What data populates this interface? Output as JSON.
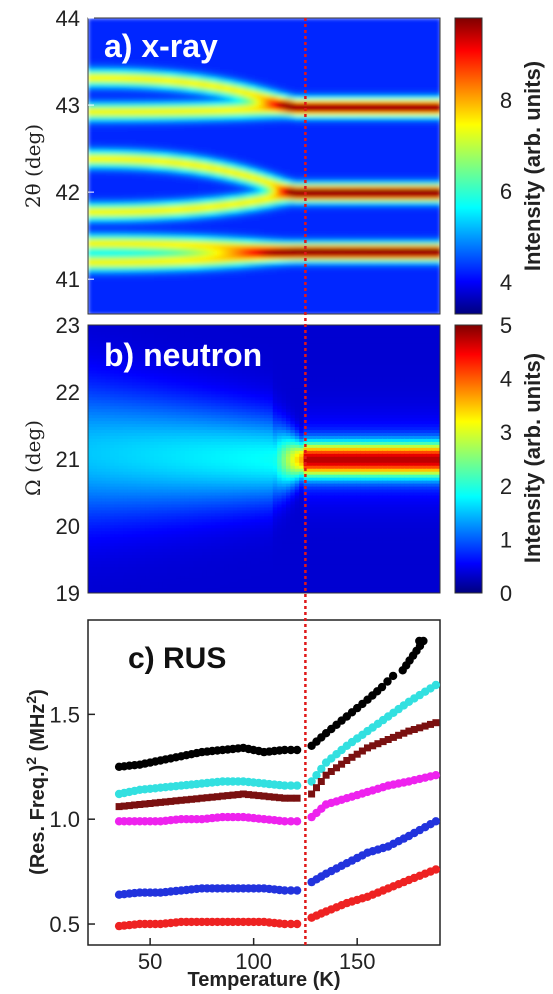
{
  "chart_data": [
    {
      "type": "heatmap",
      "panel_label": "a) x-ray",
      "ylabel": "2θ (deg)",
      "ylim": [
        40.6,
        44
      ],
      "yticks": [
        "41",
        "42",
        "43",
        "44"
      ],
      "colorbar_label": "Intensity (arb. units)",
      "colorbar_ticks": [
        "4",
        "6",
        "8"
      ],
      "colorbar_range": [
        3.3,
        9.8
      ],
      "colormap": "jet",
      "x_range": [
        30,
        190
      ],
      "peaks": [
        {
          "center_low_T": 43.32,
          "center_high_T": 42.98,
          "merge_T": 125
        },
        {
          "center_low_T": 42.93,
          "center_high_T": 42.98,
          "merge_T": 125
        },
        {
          "center_low_T": 42.39,
          "center_high_T": 42.0,
          "merge_T": 125
        },
        {
          "center_low_T": 41.78,
          "center_high_T": 42.0,
          "merge_T": 125
        },
        {
          "center_low_T": 41.42,
          "center_high_T": 41.32,
          "merge_T": 125
        },
        {
          "center_low_T": 41.2,
          "center_high_T": 41.32,
          "merge_T": 125
        }
      ]
    },
    {
      "type": "heatmap",
      "panel_label": "b) neutron",
      "ylabel": "Ω (deg)",
      "ylim": [
        19,
        23
      ],
      "yticks": [
        "19",
        "20",
        "21",
        "22",
        "23"
      ],
      "colorbar_label": "Intensity (arb. units)",
      "colorbar_ticks": [
        "0",
        "1",
        "2",
        "3",
        "4",
        "5"
      ],
      "colorbar_range": [
        0,
        5
      ],
      "colormap": "jet",
      "x_range": [
        30,
        190
      ],
      "peak_center": 21.0,
      "transition_T": 125
    },
    {
      "type": "scatter",
      "panel_label": "c) RUS",
      "xlabel": "Temperature (K)",
      "ylabel": "(Res. Freq.)² (MHz²)",
      "xlim": [
        20,
        190
      ],
      "ylim": [
        0.4,
        1.95
      ],
      "xticks": [
        "50",
        "100",
        "150"
      ],
      "yticks": [
        "0.5",
        "1.0",
        "1.5"
      ],
      "transition_T": 125,
      "series": [
        {
          "color": "#000000",
          "marker": "circle",
          "points": [
            [
              35,
              1.25
            ],
            [
              45,
              1.26
            ],
            [
              55,
              1.28
            ],
            [
              65,
              1.3
            ],
            [
              75,
              1.32
            ],
            [
              85,
              1.33
            ],
            [
              95,
              1.34
            ],
            [
              105,
              1.32
            ],
            [
              115,
              1.33
            ],
            [
              124,
              1.33
            ],
            [
              128,
              1.35
            ],
            [
              135,
              1.41
            ],
            [
              145,
              1.49
            ],
            [
              155,
              1.57
            ],
            [
              162,
              1.63
            ],
            [
              170,
              1.71
            ],
            [
              180,
              1.85
            ]
          ]
        },
        {
          "color": "#33e0e0",
          "marker": "circle",
          "points": [
            [
              35,
              1.12
            ],
            [
              45,
              1.14
            ],
            [
              55,
              1.15
            ],
            [
              65,
              1.16
            ],
            [
              75,
              1.17
            ],
            [
              85,
              1.18
            ],
            [
              95,
              1.18
            ],
            [
              105,
              1.17
            ],
            [
              115,
              1.16
            ],
            [
              124,
              1.16
            ],
            [
              128,
              1.18
            ],
            [
              135,
              1.27
            ],
            [
              145,
              1.35
            ],
            [
              155,
              1.42
            ],
            [
              165,
              1.49
            ],
            [
              175,
              1.56
            ],
            [
              188,
              1.64
            ]
          ]
        },
        {
          "color": "#7a1010",
          "marker": "square",
          "points": [
            [
              35,
              1.06
            ],
            [
              45,
              1.07
            ],
            [
              55,
              1.08
            ],
            [
              65,
              1.09
            ],
            [
              75,
              1.1
            ],
            [
              85,
              1.11
            ],
            [
              95,
              1.12
            ],
            [
              105,
              1.11
            ],
            [
              115,
              1.1
            ],
            [
              124,
              1.1
            ],
            [
              128,
              1.12
            ],
            [
              135,
              1.21
            ],
            [
              145,
              1.28
            ],
            [
              155,
              1.34
            ],
            [
              165,
              1.38
            ],
            [
              175,
              1.42
            ],
            [
              188,
              1.46
            ]
          ]
        },
        {
          "color": "#ee22ee",
          "marker": "circle",
          "points": [
            [
              35,
              0.99
            ],
            [
              45,
              0.99
            ],
            [
              55,
              0.99
            ],
            [
              65,
              1.0
            ],
            [
              75,
              1.0
            ],
            [
              85,
              1.01
            ],
            [
              95,
              1.01
            ],
            [
              105,
              1.0
            ],
            [
              115,
              0.99
            ],
            [
              124,
              0.99
            ],
            [
              128,
              1.01
            ],
            [
              135,
              1.07
            ],
            [
              145,
              1.1
            ],
            [
              155,
              1.13
            ],
            [
              165,
              1.16
            ],
            [
              175,
              1.18
            ],
            [
              188,
              1.21
            ]
          ]
        },
        {
          "color": "#2233dd",
          "marker": "circle",
          "points": [
            [
              35,
              0.64
            ],
            [
              45,
              0.65
            ],
            [
              55,
              0.65
            ],
            [
              65,
              0.66
            ],
            [
              75,
              0.67
            ],
            [
              85,
              0.67
            ],
            [
              95,
              0.67
            ],
            [
              105,
              0.67
            ],
            [
              115,
              0.66
            ],
            [
              124,
              0.66
            ],
            [
              128,
              0.7
            ],
            [
              135,
              0.74
            ],
            [
              145,
              0.79
            ],
            [
              155,
              0.84
            ],
            [
              165,
              0.87
            ],
            [
              175,
              0.92
            ],
            [
              188,
              0.99
            ]
          ]
        },
        {
          "color": "#ee2222",
          "marker": "circle",
          "points": [
            [
              35,
              0.49
            ],
            [
              45,
              0.5
            ],
            [
              55,
              0.5
            ],
            [
              65,
              0.51
            ],
            [
              75,
              0.51
            ],
            [
              85,
              0.51
            ],
            [
              95,
              0.51
            ],
            [
              105,
              0.51
            ],
            [
              115,
              0.5
            ],
            [
              124,
              0.5
            ],
            [
              128,
              0.53
            ],
            [
              135,
              0.56
            ],
            [
              145,
              0.6
            ],
            [
              155,
              0.63
            ],
            [
              165,
              0.67
            ],
            [
              175,
              0.71
            ],
            [
              188,
              0.76
            ]
          ]
        }
      ]
    }
  ]
}
